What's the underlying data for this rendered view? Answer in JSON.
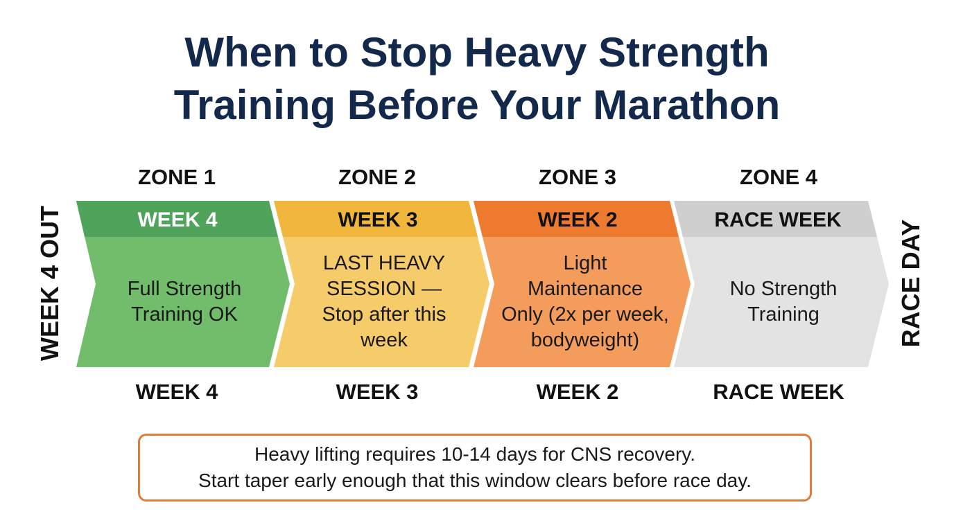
{
  "title": {
    "line1": "When to Stop Heavy Strength",
    "line2": "Training Before Your Marathon"
  },
  "side_labels": {
    "left": "WEEK 4 OUT",
    "right": "RACE DAY"
  },
  "zones": [
    {
      "zone_label": "ZONE 1",
      "week_label": "WEEK 4",
      "body_lines": [
        "Full Strength",
        "Training OK"
      ],
      "bottom_label": "WEEK 4",
      "header_color": "#4fa35a",
      "body_color": "#72bd6c",
      "header_text_color": "#ffffff"
    },
    {
      "zone_label": "ZONE 2",
      "week_label": "WEEK 3",
      "body_lines": [
        "LAST HEAVY",
        "SESSION —",
        "Stop after this",
        "week"
      ],
      "bottom_label": "WEEK 3",
      "header_color": "#f0b73c",
      "body_color": "#f6cb6a",
      "header_text_color": "#111111"
    },
    {
      "zone_label": "ZONE 3",
      "week_label": "WEEK 2",
      "body_lines": [
        "Light",
        "Maintenance",
        "Only (2x per week,",
        "bodyweight)"
      ],
      "bottom_label": "WEEK 2",
      "header_color": "#ee7a30",
      "body_color": "#f39c5b",
      "header_text_color": "#111111"
    },
    {
      "zone_label": "ZONE 4",
      "week_label": "RACE WEEK",
      "body_lines": [
        "No Strength",
        "Training"
      ],
      "bottom_label": "RACE WEEK",
      "header_color": "#cfcfcf",
      "body_color": "#e3e3e3",
      "header_text_color": "#111111"
    }
  ],
  "note": {
    "line1": "Heavy lifting requires 10-14 days for CNS recovery.",
    "line2": "Start taper early enough that this window clears before race day.",
    "border_color": "#e07b3a"
  }
}
